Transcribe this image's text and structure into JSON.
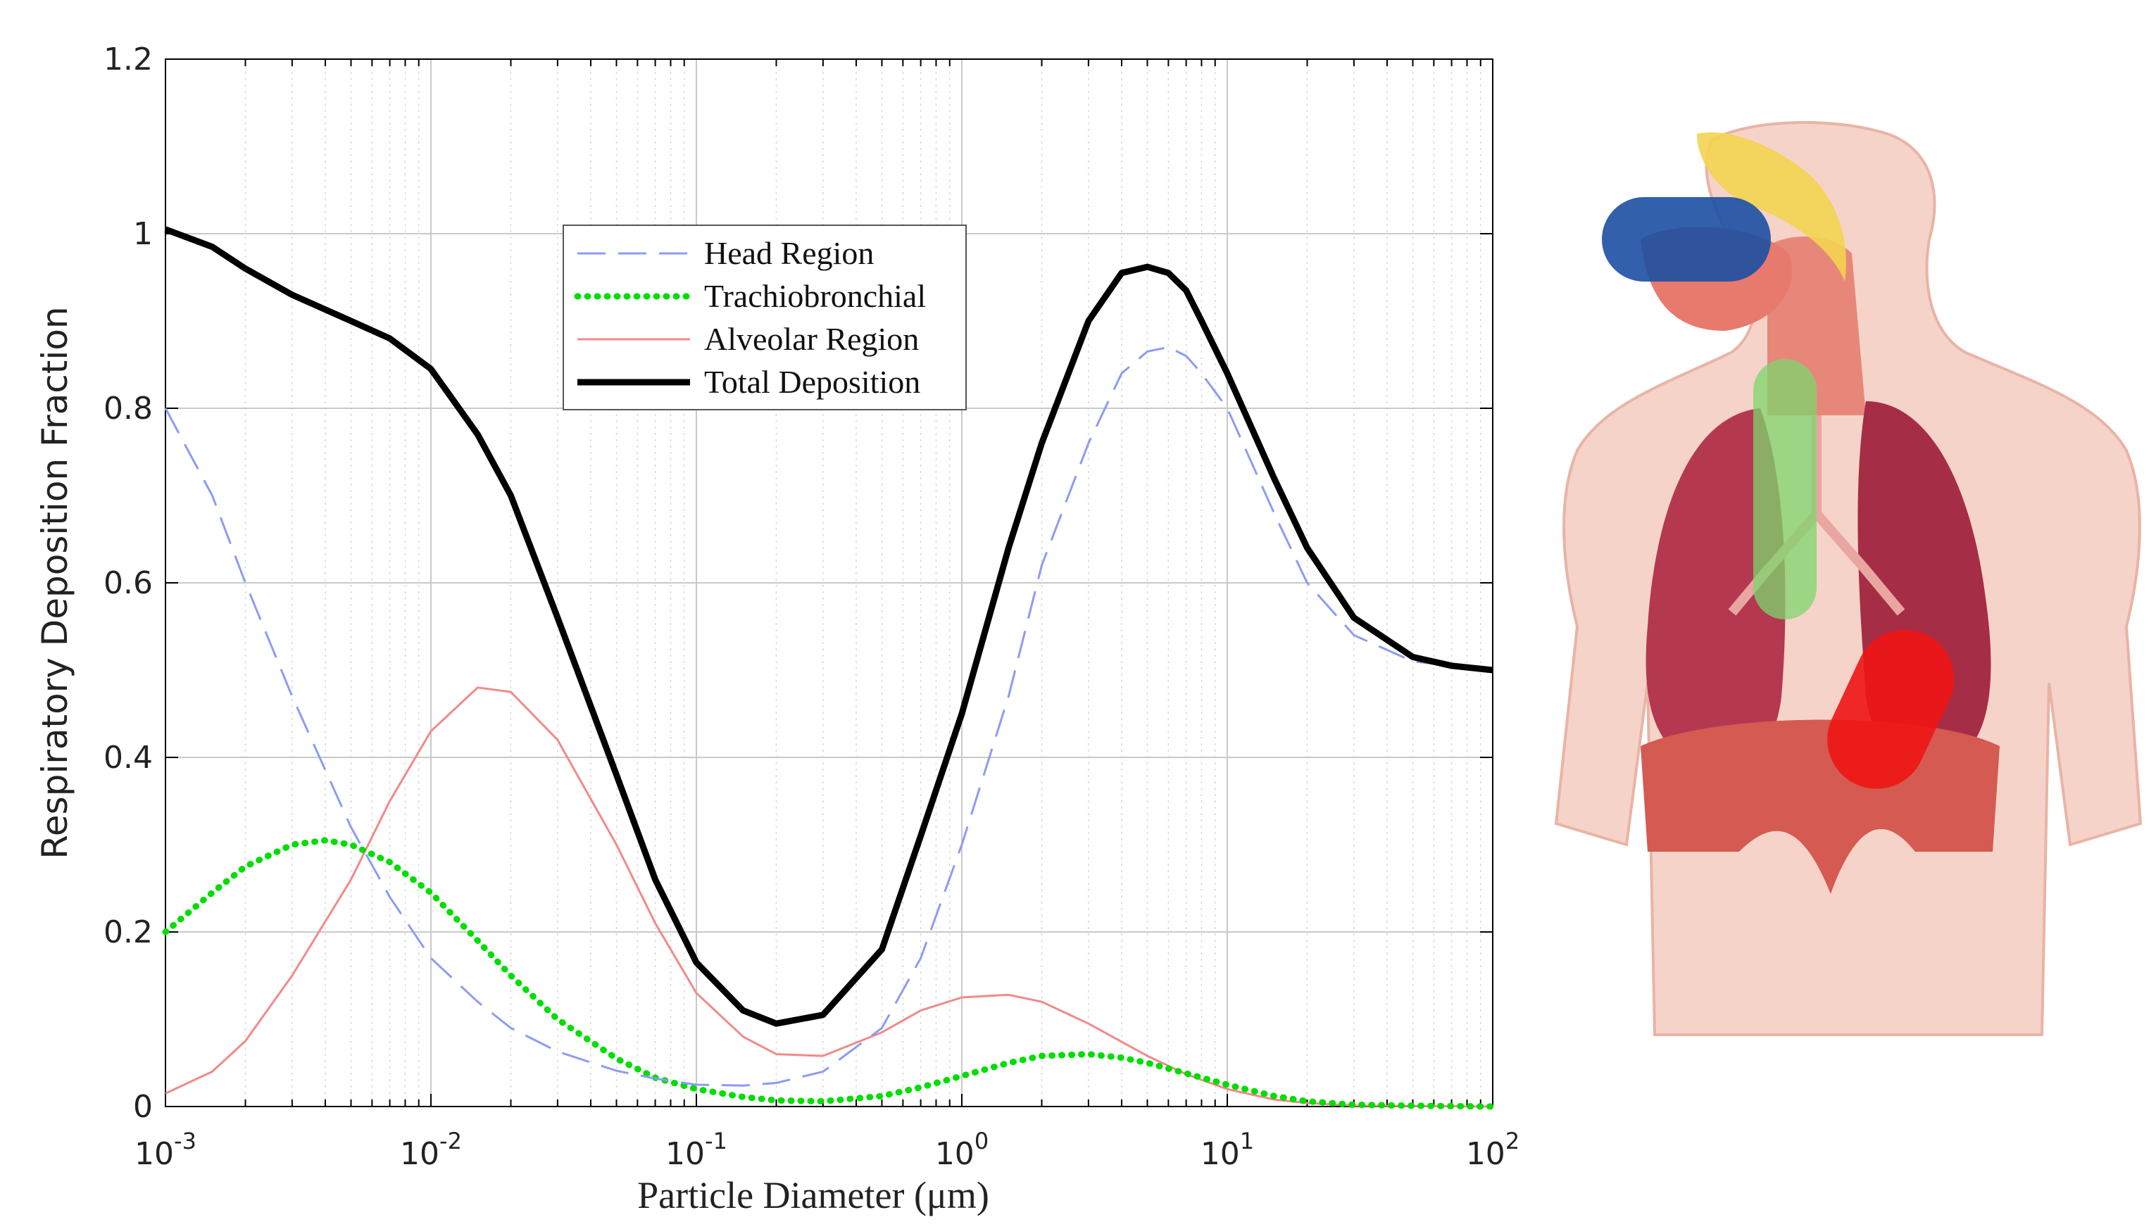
{
  "chart_data": {
    "type": "line",
    "xscale": "log",
    "xlim": [
      0.001,
      100
    ],
    "ylim": [
      0,
      1.2
    ],
    "xlabel": "Particle Diameter (μm)",
    "ylabel": "Respiratory Deposition Fraction",
    "grid": true,
    "legend_position": "top-center",
    "yticks": [
      "0",
      "0.2",
      "0.4",
      "0.6",
      "0.8",
      "1",
      "1.2"
    ],
    "xticks": [
      {
        "base": "10",
        "exp": "-3"
      },
      {
        "base": "10",
        "exp": "-2"
      },
      {
        "base": "10",
        "exp": "-1"
      },
      {
        "base": "10",
        "exp": "0"
      },
      {
        "base": "10",
        "exp": "1"
      },
      {
        "base": "10",
        "exp": "2"
      }
    ],
    "series": [
      {
        "name": "Head Region",
        "style": "dashed",
        "color": "#8c9cf2",
        "points": [
          [
            0.001,
            0.8
          ],
          [
            0.0015,
            0.7
          ],
          [
            0.002,
            0.6
          ],
          [
            0.003,
            0.47
          ],
          [
            0.005,
            0.32
          ],
          [
            0.007,
            0.24
          ],
          [
            0.01,
            0.17
          ],
          [
            0.015,
            0.12
          ],
          [
            0.02,
            0.09
          ],
          [
            0.03,
            0.063
          ],
          [
            0.05,
            0.041
          ],
          [
            0.07,
            0.032
          ],
          [
            0.1,
            0.025
          ],
          [
            0.15,
            0.024
          ],
          [
            0.2,
            0.027
          ],
          [
            0.3,
            0.04
          ],
          [
            0.5,
            0.09
          ],
          [
            0.7,
            0.17
          ],
          [
            1,
            0.3
          ],
          [
            1.5,
            0.47
          ],
          [
            2,
            0.62
          ],
          [
            3,
            0.76
          ],
          [
            4,
            0.84
          ],
          [
            5,
            0.865
          ],
          [
            6,
            0.87
          ],
          [
            7,
            0.86
          ],
          [
            8,
            0.84
          ],
          [
            10,
            0.8
          ],
          [
            15,
            0.68
          ],
          [
            20,
            0.6
          ],
          [
            30,
            0.54
          ],
          [
            50,
            0.51
          ],
          [
            70,
            0.505
          ],
          [
            100,
            0.5
          ]
        ]
      },
      {
        "name": "Trachiobronchial",
        "style": "dotted",
        "color": "#00dd00",
        "points": [
          [
            0.001,
            0.2
          ],
          [
            0.0015,
            0.245
          ],
          [
            0.002,
            0.275
          ],
          [
            0.003,
            0.3
          ],
          [
            0.004,
            0.305
          ],
          [
            0.005,
            0.3
          ],
          [
            0.007,
            0.28
          ],
          [
            0.01,
            0.245
          ],
          [
            0.015,
            0.19
          ],
          [
            0.02,
            0.15
          ],
          [
            0.03,
            0.1
          ],
          [
            0.05,
            0.055
          ],
          [
            0.07,
            0.033
          ],
          [
            0.1,
            0.02
          ],
          [
            0.15,
            0.011
          ],
          [
            0.2,
            0.007
          ],
          [
            0.3,
            0.006
          ],
          [
            0.5,
            0.012
          ],
          [
            0.7,
            0.022
          ],
          [
            1,
            0.035
          ],
          [
            1.5,
            0.05
          ],
          [
            2,
            0.058
          ],
          [
            3,
            0.06
          ],
          [
            4,
            0.056
          ],
          [
            5,
            0.05
          ],
          [
            7,
            0.038
          ],
          [
            10,
            0.025
          ],
          [
            15,
            0.012
          ],
          [
            20,
            0.006
          ],
          [
            30,
            0.002
          ],
          [
            50,
            0.001
          ],
          [
            100,
            0.0
          ]
        ]
      },
      {
        "name": "Alveolar Region",
        "style": "solid",
        "color": "#f08a8a",
        "points": [
          [
            0.001,
            0.015
          ],
          [
            0.0015,
            0.04
          ],
          [
            0.002,
            0.075
          ],
          [
            0.003,
            0.15
          ],
          [
            0.005,
            0.26
          ],
          [
            0.007,
            0.35
          ],
          [
            0.01,
            0.43
          ],
          [
            0.015,
            0.48
          ],
          [
            0.02,
            0.475
          ],
          [
            0.03,
            0.42
          ],
          [
            0.05,
            0.3
          ],
          [
            0.07,
            0.21
          ],
          [
            0.1,
            0.13
          ],
          [
            0.15,
            0.08
          ],
          [
            0.2,
            0.06
          ],
          [
            0.3,
            0.058
          ],
          [
            0.5,
            0.085
          ],
          [
            0.7,
            0.11
          ],
          [
            1,
            0.125
          ],
          [
            1.5,
            0.128
          ],
          [
            2,
            0.12
          ],
          [
            3,
            0.095
          ],
          [
            5,
            0.058
          ],
          [
            7,
            0.037
          ],
          [
            10,
            0.02
          ],
          [
            15,
            0.008
          ],
          [
            20,
            0.004
          ],
          [
            30,
            0.001
          ],
          [
            100,
            0.0
          ]
        ]
      },
      {
        "name": "Total Deposition",
        "style": "solid-thick",
        "color": "#000000",
        "points": [
          [
            0.001,
            1.005
          ],
          [
            0.0015,
            0.985
          ],
          [
            0.002,
            0.96
          ],
          [
            0.003,
            0.93
          ],
          [
            0.005,
            0.9
          ],
          [
            0.007,
            0.88
          ],
          [
            0.01,
            0.845
          ],
          [
            0.015,
            0.77
          ],
          [
            0.02,
            0.7
          ],
          [
            0.03,
            0.56
          ],
          [
            0.05,
            0.38
          ],
          [
            0.07,
            0.26
          ],
          [
            0.1,
            0.165
          ],
          [
            0.15,
            0.11
          ],
          [
            0.2,
            0.095
          ],
          [
            0.3,
            0.105
          ],
          [
            0.5,
            0.18
          ],
          [
            0.7,
            0.31
          ],
          [
            1,
            0.45
          ],
          [
            1.5,
            0.64
          ],
          [
            2,
            0.76
          ],
          [
            3,
            0.9
          ],
          [
            4,
            0.955
          ],
          [
            5,
            0.962
          ],
          [
            6,
            0.955
          ],
          [
            7,
            0.935
          ],
          [
            8,
            0.9
          ],
          [
            10,
            0.84
          ],
          [
            15,
            0.72
          ],
          [
            20,
            0.64
          ],
          [
            30,
            0.56
          ],
          [
            50,
            0.515
          ],
          [
            70,
            0.505
          ],
          [
            100,
            0.5
          ]
        ]
      }
    ]
  },
  "illustration": {
    "head_region_color": "#1c4fa3",
    "trachiobronchial_color": "#7ed66e",
    "alveolar_color": "#ee1515"
  }
}
